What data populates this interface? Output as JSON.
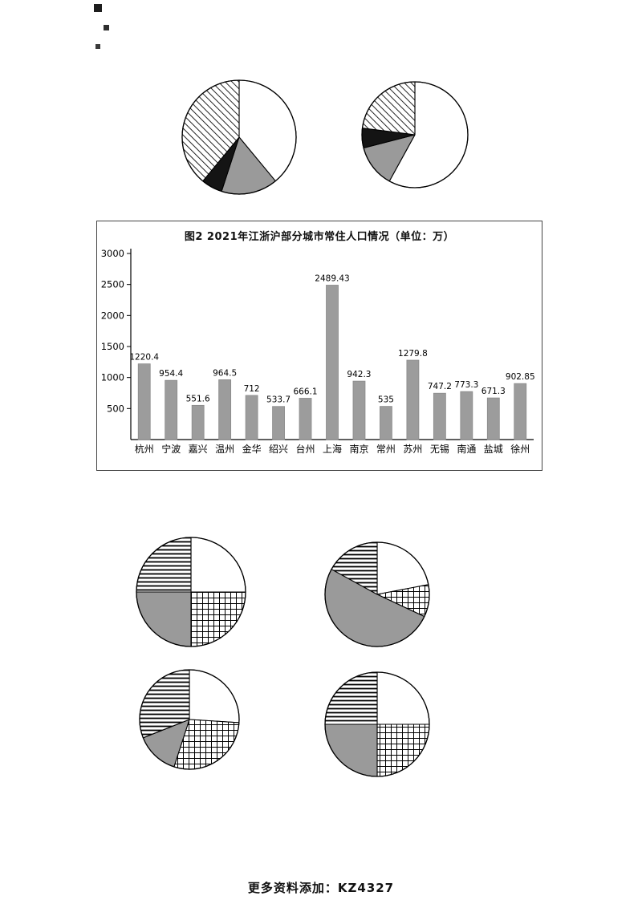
{
  "page": {
    "footer_text": "更多资料添加：KZ4327"
  },
  "colors": {
    "bar": "#9c9c9c",
    "bar_edge": "#8a8a8a",
    "gray_slice": "#9a9a9a",
    "black_slice": "#141414",
    "line": "#000000"
  },
  "chart_data": [
    {
      "id": "pie-top-left",
      "type": "pie",
      "title": "",
      "legend": "none",
      "start_angle": "top-clockwise",
      "slices": [
        {
          "fill": "white",
          "label": "blank-white",
          "value": 39
        },
        {
          "fill": "gray",
          "label": "solid-gray",
          "value": 16
        },
        {
          "fill": "black",
          "label": "solid-black",
          "value": 6
        },
        {
          "fill": "diag",
          "label": "diagonal-hatch",
          "value": 39
        }
      ]
    },
    {
      "id": "pie-top-right",
      "type": "pie",
      "title": "",
      "legend": "none",
      "start_angle": "top-clockwise",
      "slices": [
        {
          "fill": "white",
          "label": "blank-white",
          "value": 58
        },
        {
          "fill": "gray",
          "label": "solid-gray",
          "value": 13
        },
        {
          "fill": "black",
          "label": "solid-black",
          "value": 6
        },
        {
          "fill": "diag",
          "label": "diagonal-hatch",
          "value": 23
        }
      ]
    },
    {
      "id": "bar-population",
      "type": "bar",
      "title": "图2  2021年江浙沪部分城市常住人口情况（单位：万）",
      "categories": [
        "杭州",
        "宁波",
        "嘉兴",
        "温州",
        "金华",
        "绍兴",
        "台州",
        "上海",
        "南京",
        "常州",
        "苏州",
        "无锡",
        "南通",
        "盐城",
        "徐州"
      ],
      "values": [
        1220.4,
        954.4,
        551.6,
        964.5,
        712,
        533.7,
        666.1,
        2489.43,
        942.3,
        535,
        1279.8,
        747.2,
        773.3,
        671.3,
        902.85
      ],
      "xlabel": "",
      "ylabel": "",
      "ylim": [
        0,
        3000
      ],
      "yticks": [
        500,
        1000,
        1500,
        2000,
        2500,
        3000
      ],
      "grid": false,
      "legend": "none"
    },
    {
      "id": "pie-a",
      "type": "pie",
      "title": "",
      "legend": "none",
      "start_angle": "top-clockwise",
      "slices": [
        {
          "fill": "white",
          "label": "blank-white",
          "value": 25
        },
        {
          "fill": "grid",
          "label": "cross-grid",
          "value": 25
        },
        {
          "fill": "gray",
          "label": "solid-gray",
          "value": 25
        },
        {
          "fill": "hlines",
          "label": "horizontal-stripes",
          "value": 25
        }
      ]
    },
    {
      "id": "pie-b",
      "type": "pie",
      "title": "",
      "legend": "none",
      "start_angle": "top-clockwise",
      "slices": [
        {
          "fill": "white",
          "label": "blank-white",
          "value": 22
        },
        {
          "fill": "grid",
          "label": "cross-grid",
          "value": 10
        },
        {
          "fill": "gray",
          "label": "solid-gray",
          "value": 51
        },
        {
          "fill": "hlines",
          "label": "horizontal-stripes",
          "value": 17
        }
      ]
    },
    {
      "id": "pie-c",
      "type": "pie",
      "title": "",
      "legend": "none",
      "start_angle": "top-clockwise",
      "slices": [
        {
          "fill": "white",
          "label": "blank-white",
          "value": 26
        },
        {
          "fill": "grid",
          "label": "cross-grid",
          "value": 29
        },
        {
          "fill": "gray",
          "label": "solid-gray",
          "value": 14
        },
        {
          "fill": "hlines",
          "label": "horizontal-stripes",
          "value": 31
        }
      ]
    },
    {
      "id": "pie-d",
      "type": "pie",
      "title": "",
      "legend": "none",
      "start_angle": "top-clockwise",
      "slices": [
        {
          "fill": "white",
          "label": "blank-white",
          "value": 25
        },
        {
          "fill": "grid",
          "label": "cross-grid",
          "value": 25
        },
        {
          "fill": "gray",
          "label": "solid-gray",
          "value": 25
        },
        {
          "fill": "hlines",
          "label": "horizontal-stripes",
          "value": 25
        }
      ]
    }
  ]
}
